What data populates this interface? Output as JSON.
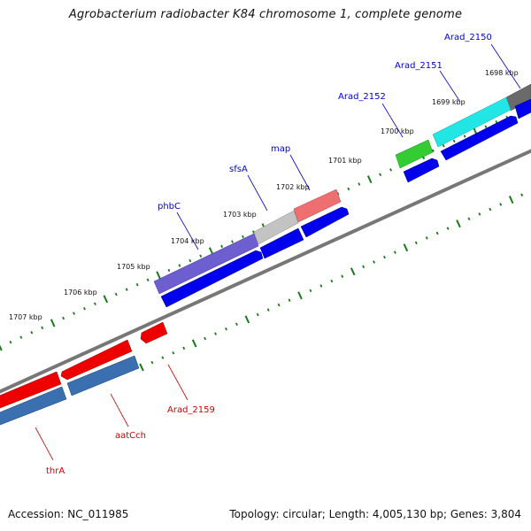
{
  "title": "Agrobacterium radiobacter K84 chromosome 1, complete genome",
  "footer": {
    "accession": "Accession: NC_011985",
    "summary": "Topology: circular; Length: 4,005,130 bp; Genes: 3,804"
  },
  "colors": {
    "plus_label": "#0000cc",
    "minus_label": "#cc0000",
    "tick": "#1a7a1a",
    "backbone": "#777777",
    "cds": "#0000ee",
    "rna": "#3a6fb0"
  },
  "scale": {
    "ticks": [
      "1698 kbp",
      "1699 kbp",
      "1700 kbp",
      "1701 kbp",
      "1702 kbp",
      "1703 kbp",
      "1704 kbp",
      "1705 kbp",
      "1706 kbp",
      "1707 kbp"
    ]
  },
  "features": {
    "plus_labels": [
      "Arad_2150",
      "Arad_2151",
      "Arad_2152",
      "map",
      "sfsA",
      "phbC"
    ],
    "minus_labels": [
      "Arad_2159",
      "aatCch",
      "thrA"
    ]
  }
}
